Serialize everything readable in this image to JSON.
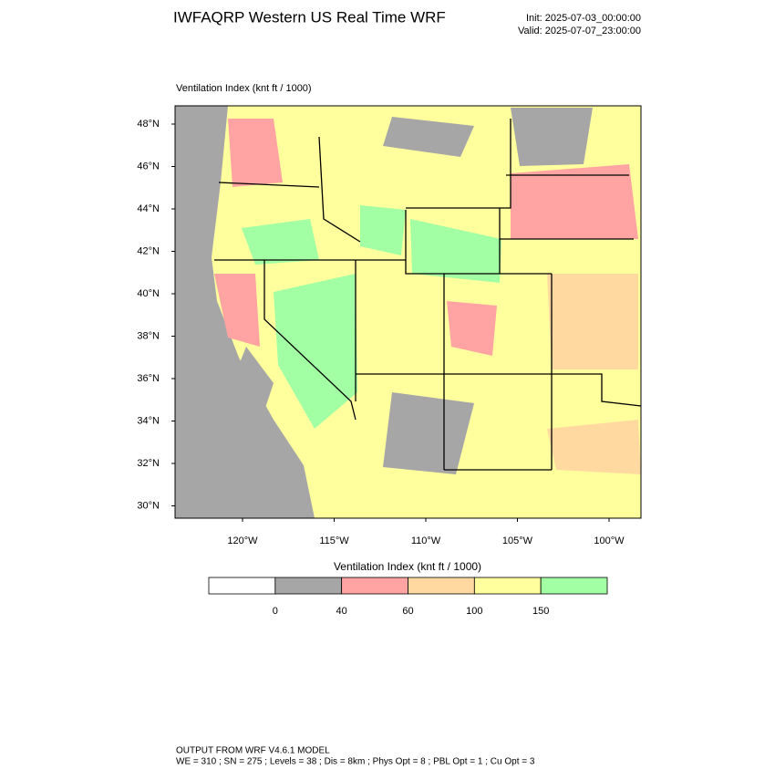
{
  "header": {
    "title": "IWFAQRP Western US Real Time WRF",
    "init": "Init: 2025-07-03_00:00:00",
    "valid": "Valid: 2025-07-07_23:00:00"
  },
  "map": {
    "label": "Ventilation Index   (knt ft / 1000)",
    "lat_labels": [
      "48°N",
      "46°N",
      "44°N",
      "42°N",
      "40°N",
      "38°N",
      "36°N",
      "34°N",
      "32°N",
      "30°N"
    ],
    "lon_labels": [
      "120°W",
      "115°W",
      "110°W",
      "105°W",
      "100°W"
    ]
  },
  "colorbar": {
    "title": "Ventilation Index  (knt ft / 1000)",
    "colors": [
      "#ffffff",
      "#a6a6a6",
      "#ffa3a3",
      "#ffd9a0",
      "#ffff9e",
      "#a3ffa3"
    ],
    "ticks": [
      0,
      40,
      60,
      100,
      150
    ]
  },
  "footer": {
    "line1": "OUTPUT FROM WRF V4.6.1 MODEL",
    "line2": "WE = 310 ; SN = 275 ; Levels = 38 ; Dis = 8km ; Phys Opt = 8 ; PBL Opt = 1 ; Cu Opt = 3"
  }
}
